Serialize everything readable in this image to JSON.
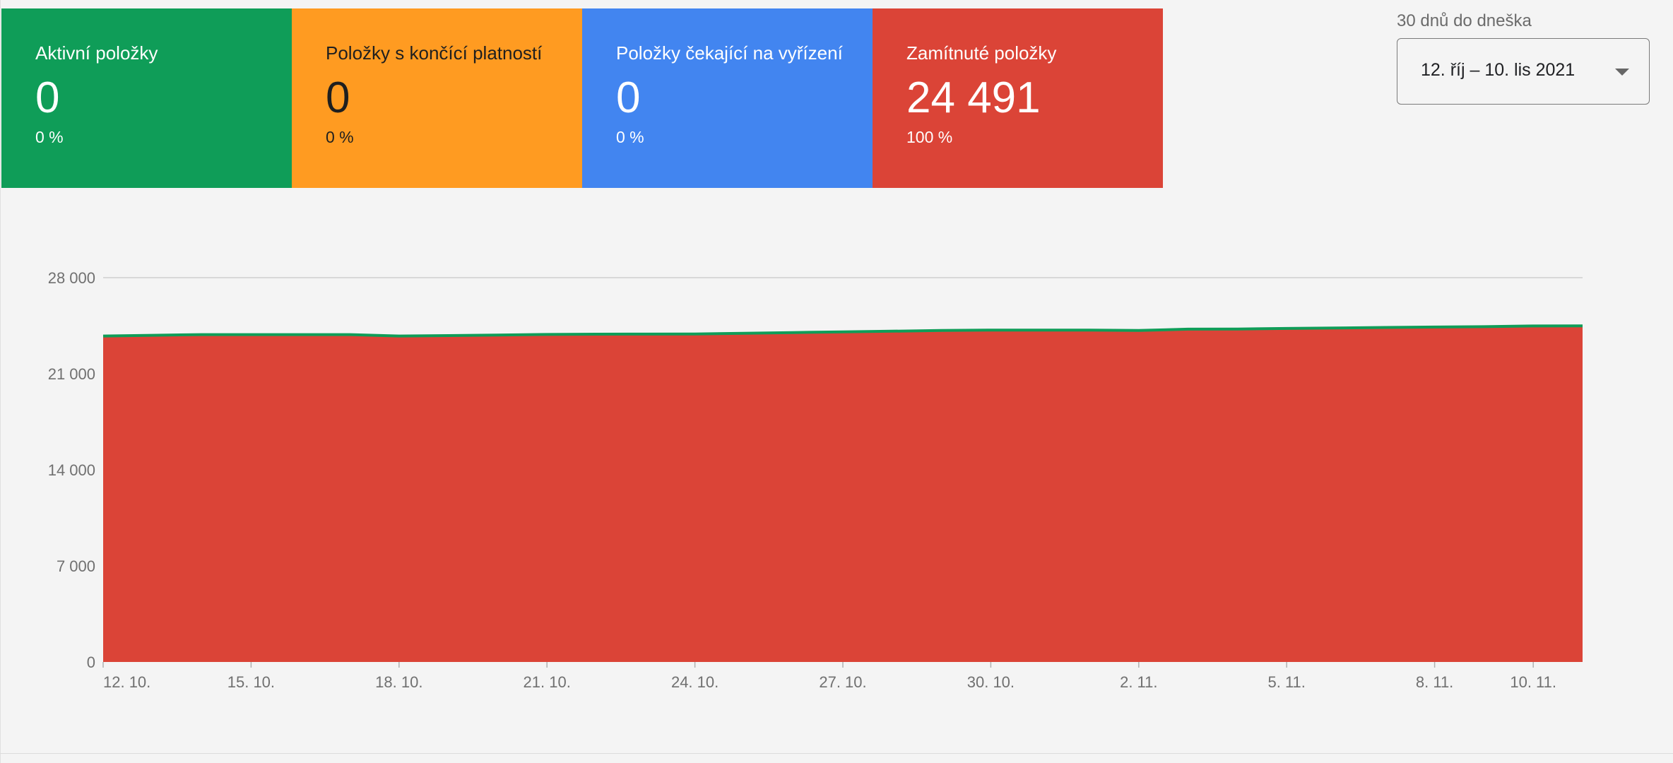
{
  "cards": [
    {
      "label": "Aktivní položky",
      "value": "0",
      "percent": "0 %",
      "bg": "#0f9d58",
      "fg": "#ffffff"
    },
    {
      "label": "Položky s končící platností",
      "value": "0",
      "percent": "0 %",
      "bg": "#ff9b21",
      "fg": "#1f1f1f"
    },
    {
      "label": "Položky čekající na vyřízení",
      "value": "0",
      "percent": "0 %",
      "bg": "#4285f0",
      "fg": "#ffffff"
    },
    {
      "label": "Zamítnuté položky",
      "value": "24 491",
      "percent": "100 %",
      "bg": "#db4437",
      "fg": "#ffffff"
    }
  ],
  "date_range": {
    "caption": "30 dnů do dneška",
    "value": "12. říj – 10. lis 2021",
    "icon": "chevron-down-icon"
  },
  "chart_data": {
    "type": "area",
    "title": "",
    "xlabel": "",
    "ylabel": "",
    "ylim": [
      0,
      28000
    ],
    "y_ticks": [
      0,
      7000,
      14000,
      21000,
      28000
    ],
    "y_tick_labels": [
      "0",
      "7 000",
      "14 000",
      "21 000",
      "28 000"
    ],
    "x": [
      "12. 10.",
      "13. 10.",
      "14. 10.",
      "15. 10.",
      "16. 10.",
      "17. 10.",
      "18. 10.",
      "19. 10.",
      "20. 10.",
      "21. 10.",
      "22. 10.",
      "23. 10.",
      "24. 10.",
      "25. 10.",
      "26. 10.",
      "27. 10.",
      "28. 10.",
      "29. 10.",
      "30. 10.",
      "31. 10.",
      "1. 11.",
      "2. 11.",
      "3. 11.",
      "4. 11.",
      "5. 11.",
      "6. 11.",
      "7. 11.",
      "8. 11.",
      "9. 11.",
      "10. 11.",
      "11. 11."
    ],
    "x_tick_labels": [
      "12. 10.",
      "15. 10.",
      "18. 10.",
      "21. 10.",
      "24. 10.",
      "27. 10.",
      "30. 10.",
      "2. 11.",
      "5. 11.",
      "8. 11.",
      "10. 11."
    ],
    "grid": "top-gridline",
    "series": [
      {
        "color": "#db4437",
        "values": [
          23750,
          23800,
          23850,
          23850,
          23850,
          23850,
          23750,
          23780,
          23820,
          23860,
          23880,
          23890,
          23900,
          23950,
          24000,
          24050,
          24100,
          24150,
          24180,
          24180,
          24180,
          24150,
          24250,
          24260,
          24300,
          24330,
          24370,
          24400,
          24430,
          24480,
          24491
        ]
      },
      {
        "color": "#0f9d58",
        "values": [
          0,
          0,
          0,
          0,
          0,
          0,
          0,
          0,
          0,
          0,
          0,
          0,
          0,
          0,
          0,
          0,
          0,
          0,
          0,
          0,
          0,
          0,
          0,
          0,
          0,
          0,
          0,
          0,
          0,
          0,
          0
        ]
      }
    ]
  }
}
